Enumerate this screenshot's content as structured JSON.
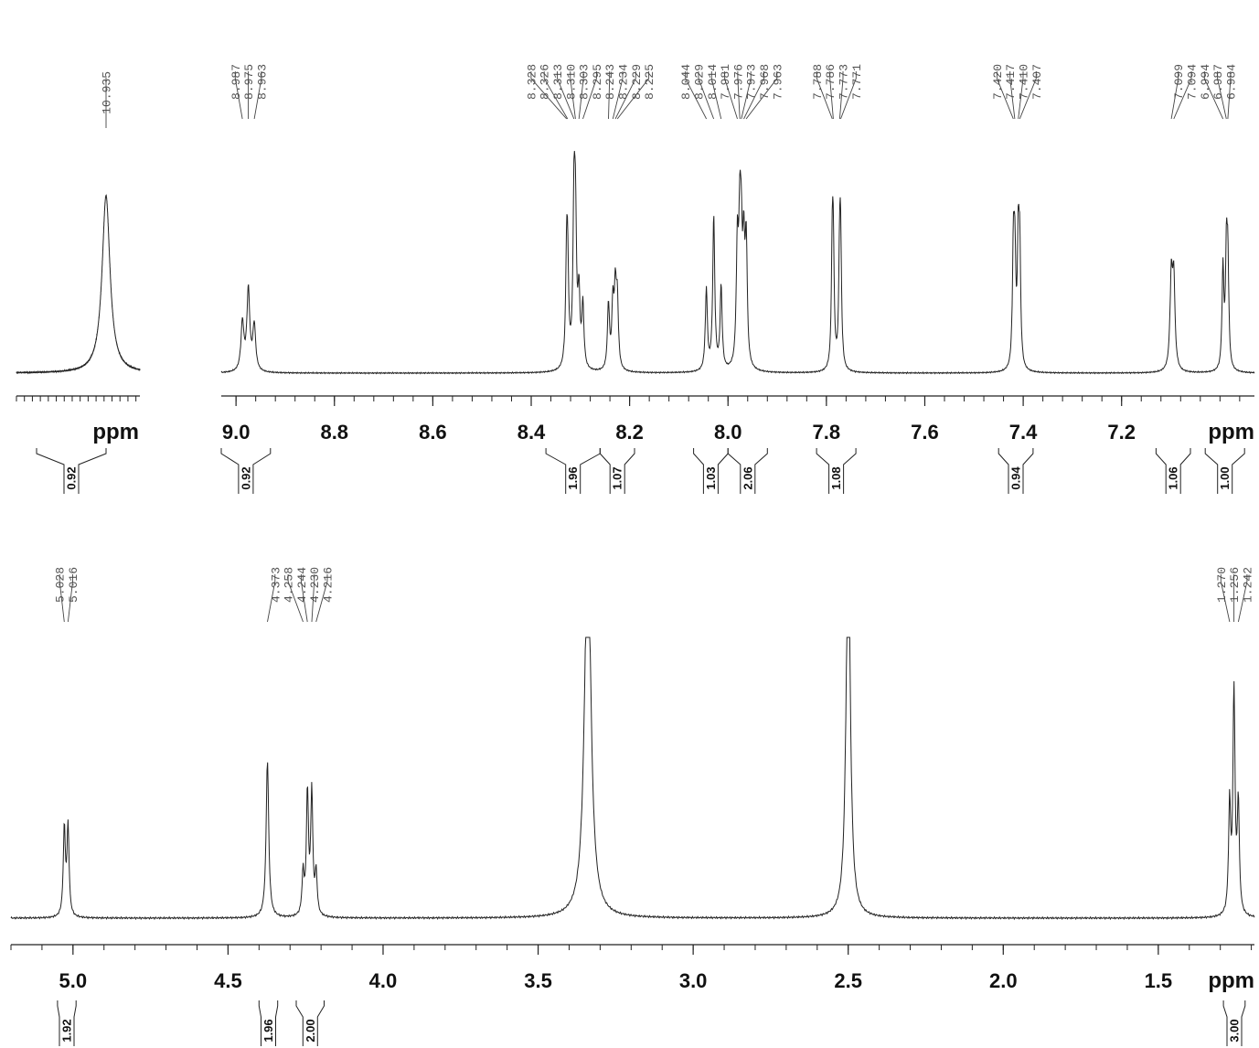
{
  "chart_data": [
    {
      "type": "line",
      "name": "ppm",
      "x_unit": "ppm",
      "xlim": [
        11.16,
        10.85
      ],
      "x_ticks": [],
      "peak_labels": [
        "10.935"
      ],
      "integrals": [
        "0.92"
      ],
      "peaks": [
        {
          "x": 10.935,
          "h": 0.98,
          "w": 0.012
        }
      ]
    },
    {
      "type": "line",
      "x_unit": "ppm",
      "xlim": [
        9.03,
        6.93
      ],
      "x_ticks": [
        {
          "value": 9.0,
          "label": "9.0"
        },
        {
          "value": 8.8,
          "label": "8.8"
        },
        {
          "value": 8.6,
          "label": "8.6"
        },
        {
          "value": 8.4,
          "label": "8.4"
        },
        {
          "value": 8.2,
          "label": "8.2"
        },
        {
          "value": 8.0,
          "label": "8.0"
        },
        {
          "value": 7.8,
          "label": "7.8"
        },
        {
          "value": 7.6,
          "label": "7.6"
        },
        {
          "value": 7.4,
          "label": "7.4"
        },
        {
          "value": 7.2,
          "label": "7.2"
        }
      ],
      "peak_labels": [
        "8.987",
        "8.975",
        "8.963",
        "8.328",
        "8.326",
        "8.313",
        "8.310",
        "8.303",
        "8.295",
        "8.243",
        "8.234",
        "8.229",
        "8.225",
        "8.044",
        "8.029",
        "8.014",
        "7.981",
        "7.976",
        "7.973",
        "7.968",
        "7.963",
        "7.788",
        "7.786",
        "7.773",
        "7.771",
        "7.420",
        "7.417",
        "7.410",
        "7.407",
        "7.099",
        "7.094",
        "6.994",
        "6.987",
        "6.984"
      ],
      "integrals": [
        {
          "value": "0.92",
          "from": 9.03,
          "to": 8.93
        },
        {
          "value": "1.96",
          "from": 8.37,
          "to": 8.26
        },
        {
          "value": "1.07",
          "from": 8.26,
          "to": 8.19
        },
        {
          "value": "1.03",
          "from": 8.07,
          "to": 8.0
        },
        {
          "value": "2.06",
          "from": 8.0,
          "to": 7.92
        },
        {
          "value": "1.08",
          "from": 7.82,
          "to": 7.74
        },
        {
          "value": "0.94",
          "from": 7.45,
          "to": 7.38
        },
        {
          "value": "1.06",
          "from": 7.13,
          "to": 7.06
        },
        {
          "value": "1.00",
          "from": 7.03,
          "to": 6.95
        }
      ],
      "peaks": [
        {
          "x": 8.987,
          "h": 0.27,
          "w": 0.0035
        },
        {
          "x": 8.975,
          "h": 0.45,
          "w": 0.0035
        },
        {
          "x": 8.963,
          "h": 0.25,
          "w": 0.0035
        },
        {
          "x": 8.328,
          "h": 0.52,
          "w": 0.0025
        },
        {
          "x": 8.326,
          "h": 0.45,
          "w": 0.0025
        },
        {
          "x": 8.313,
          "h": 0.85,
          "w": 0.0025
        },
        {
          "x": 8.31,
          "h": 0.7,
          "w": 0.0025
        },
        {
          "x": 8.303,
          "h": 0.38,
          "w": 0.0025
        },
        {
          "x": 8.295,
          "h": 0.35,
          "w": 0.0025
        },
        {
          "x": 8.243,
          "h": 0.36,
          "w": 0.0025
        },
        {
          "x": 8.234,
          "h": 0.35,
          "w": 0.0025
        },
        {
          "x": 8.229,
          "h": 0.4,
          "w": 0.0025
        },
        {
          "x": 8.225,
          "h": 0.36,
          "w": 0.0025
        },
        {
          "x": 8.044,
          "h": 0.45,
          "w": 0.0025
        },
        {
          "x": 8.029,
          "h": 0.85,
          "w": 0.0025
        },
        {
          "x": 8.014,
          "h": 0.46,
          "w": 0.0025
        },
        {
          "x": 7.981,
          "h": 0.65,
          "w": 0.0025
        },
        {
          "x": 7.976,
          "h": 0.68,
          "w": 0.0025
        },
        {
          "x": 7.973,
          "h": 0.55,
          "w": 0.0025
        },
        {
          "x": 7.968,
          "h": 0.58,
          "w": 0.0025
        },
        {
          "x": 7.963,
          "h": 0.66,
          "w": 0.0025
        },
        {
          "x": 7.788,
          "h": 0.6,
          "w": 0.0022
        },
        {
          "x": 7.786,
          "h": 0.55,
          "w": 0.0022
        },
        {
          "x": 7.773,
          "h": 0.58,
          "w": 0.0022
        },
        {
          "x": 7.771,
          "h": 0.56,
          "w": 0.0022
        },
        {
          "x": 7.42,
          "h": 0.62,
          "w": 0.0022
        },
        {
          "x": 7.417,
          "h": 0.58,
          "w": 0.0022
        },
        {
          "x": 7.41,
          "h": 0.64,
          "w": 0.0022
        },
        {
          "x": 7.407,
          "h": 0.6,
          "w": 0.0022
        },
        {
          "x": 7.099,
          "h": 0.5,
          "w": 0.003
        },
        {
          "x": 7.094,
          "h": 0.48,
          "w": 0.003
        },
        {
          "x": 6.994,
          "h": 0.56,
          "w": 0.0022
        },
        {
          "x": 6.987,
          "h": 0.6,
          "w": 0.0022
        },
        {
          "x": 6.984,
          "h": 0.56,
          "w": 0.0022
        }
      ]
    },
    {
      "type": "line",
      "x_unit": "ppm",
      "xlim": [
        5.2,
        1.19
      ],
      "x_ticks": [
        {
          "value": 5.0,
          "label": "5.0"
        },
        {
          "value": 4.5,
          "label": "4.5"
        },
        {
          "value": 4.0,
          "label": "4.0"
        },
        {
          "value": 3.5,
          "label": "3.5"
        },
        {
          "value": 3.0,
          "label": "3.0"
        },
        {
          "value": 2.5,
          "label": "2.5"
        },
        {
          "value": 2.0,
          "label": "2.0"
        },
        {
          "value": 1.5,
          "label": "1.5"
        }
      ],
      "peak_labels": [
        "5.028",
        "5.016",
        "4.373",
        "4.258",
        "4.244",
        "4.230",
        "4.216",
        "1.270",
        "1.256",
        "1.242"
      ],
      "integrals": [
        {
          "value": "1.92",
          "from": 5.05,
          "to": 4.99
        },
        {
          "value": "1.96",
          "from": 4.4,
          "to": 4.34
        },
        {
          "value": "2.00",
          "from": 4.28,
          "to": 4.19
        },
        {
          "value": "3.00",
          "from": 1.29,
          "to": 1.22
        }
      ],
      "peaks": [
        {
          "x": 5.028,
          "h": 0.34,
          "w": 0.004
        },
        {
          "x": 5.016,
          "h": 0.34,
          "w": 0.004
        },
        {
          "x": 4.373,
          "h": 0.6,
          "w": 0.005
        },
        {
          "x": 4.258,
          "h": 0.16,
          "w": 0.004
        },
        {
          "x": 4.244,
          "h": 0.47,
          "w": 0.004
        },
        {
          "x": 4.23,
          "h": 0.47,
          "w": 0.004
        },
        {
          "x": 4.216,
          "h": 0.16,
          "w": 0.004
        },
        {
          "x": 3.34,
          "h": 1.5,
          "w": 0.012
        },
        {
          "x": 2.5,
          "h": 1.5,
          "w": 0.008
        },
        {
          "x": 1.27,
          "h": 0.42,
          "w": 0.004
        },
        {
          "x": 1.256,
          "h": 0.85,
          "w": 0.004
        },
        {
          "x": 1.242,
          "h": 0.42,
          "w": 0.004
        }
      ]
    }
  ]
}
